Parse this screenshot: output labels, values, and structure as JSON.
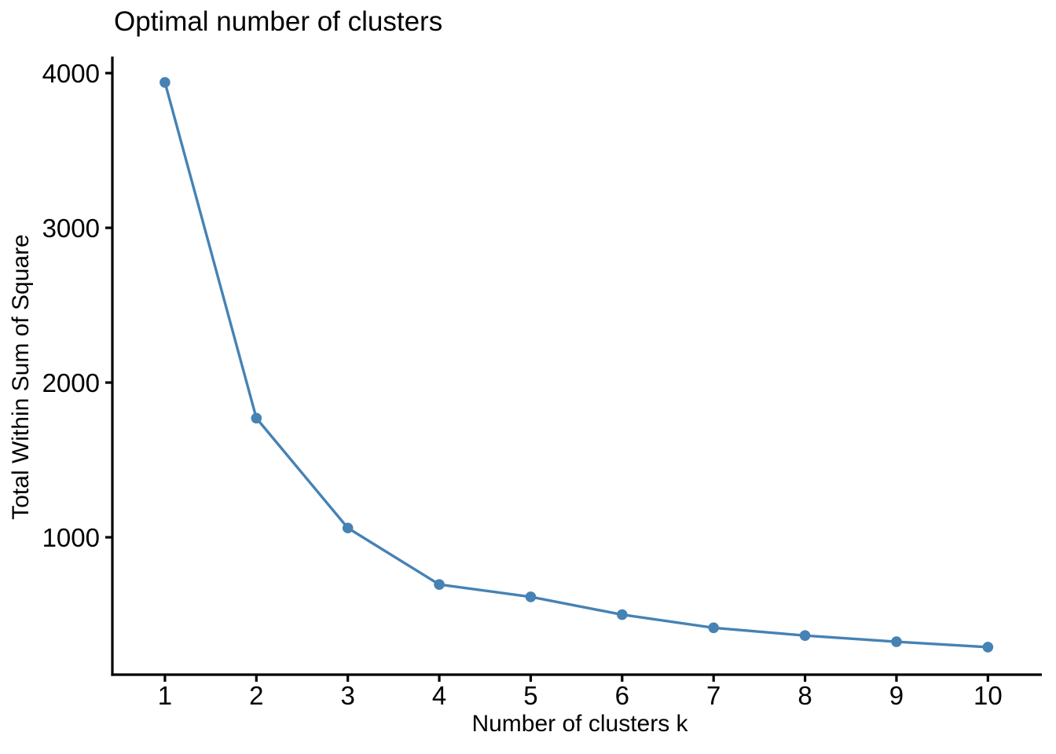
{
  "chart": {
    "title": "Optimal number of clusters",
    "xlabel": "Number of clusters k",
    "ylabel": "Total Within Sum of Square"
  },
  "chart_data": {
    "type": "line",
    "title": "Optimal number of clusters",
    "xlabel": "Number of clusters k",
    "ylabel": "Total Within Sum of Square",
    "x": [
      1,
      2,
      3,
      4,
      5,
      6,
      7,
      8,
      9,
      10
    ],
    "series": [
      {
        "name": "Total Within Sum of Square",
        "values": [
          3940,
          1770,
          1060,
          695,
          615,
          500,
          415,
          365,
          325,
          290
        ]
      }
    ],
    "xticks": [
      1,
      2,
      3,
      4,
      5,
      6,
      7,
      8,
      9,
      10
    ],
    "yticks": [
      1000,
      2000,
      3000,
      4000
    ],
    "xlim": [
      0.425,
      10.59
    ],
    "ylim": [
      112,
      4107
    ],
    "grid": false,
    "legend": "none",
    "line_color": "#4682B4",
    "marker_color": "#4682B4",
    "axis_color": "#000000",
    "background_color": "#FFFFFF"
  }
}
